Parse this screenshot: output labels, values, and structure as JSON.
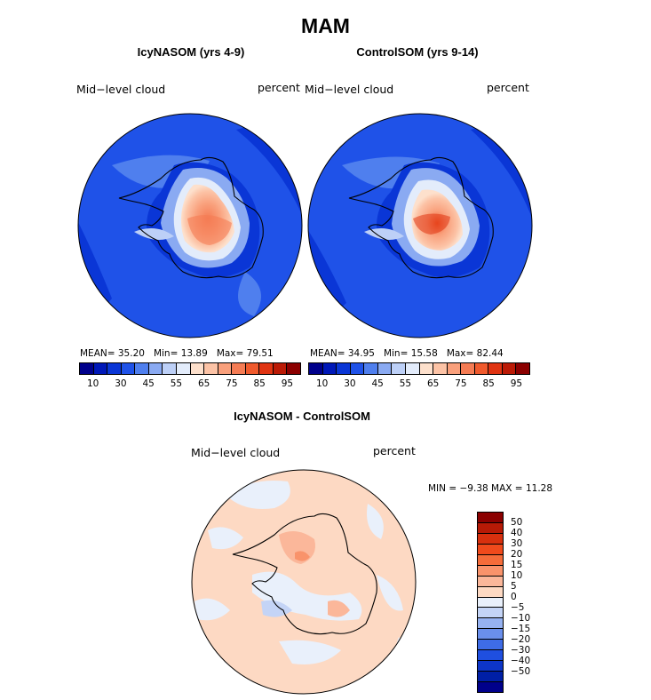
{
  "title": "MAM",
  "panels": [
    {
      "title": "IcyNASOM (yrs 4-9)",
      "left_label": "Mid−level cloud",
      "right_label": "percent",
      "mean": "35.20",
      "min": "13.89",
      "max": "79.51"
    },
    {
      "title": "ControlSOM (yrs 9-14)",
      "left_label": "Mid−level cloud",
      "right_label": "percent",
      "mean": "34.95",
      "min": "15.58",
      "max": "82.44"
    }
  ],
  "stat_labels": {
    "mean": "MEAN=",
    "min": "Min=",
    "max": "Max="
  },
  "abs_scale": {
    "colors": [
      "#00008b",
      "#0018b8",
      "#0a36d6",
      "#1f52e8",
      "#4f7fee",
      "#8aaaf2",
      "#bdd0f7",
      "#e3ecfb",
      "#fde0cc",
      "#fcc3a6",
      "#f9a07c",
      "#f57c54",
      "#f05a2d",
      "#e03412",
      "#bb1a06",
      "#8b0000"
    ],
    "tick_labels": [
      "10",
      "30",
      "45",
      "55",
      "65",
      "75",
      "85",
      "95"
    ]
  },
  "diff": {
    "title": "IcyNASOM - ControlSOM",
    "left_label": "Mid−level cloud",
    "right_label": "percent",
    "min_label": "MIN =",
    "min": "−9.38",
    "max_label": "MAX =",
    "max": "11.28",
    "colors": [
      "#8b0000",
      "#b71a06",
      "#d8300e",
      "#f04a1c",
      "#f56c3a",
      "#f9936b",
      "#fbb79a",
      "#fdd9c3",
      "#e9f0fb",
      "#c4d4f6",
      "#96b2f1",
      "#6a8fec",
      "#3e6ce6",
      "#1f4fe0",
      "#0d35c8",
      "#001fa6",
      "#00008b"
    ],
    "tick_labels": [
      "50",
      "40",
      "30",
      "20",
      "15",
      "10",
      "5",
      "0",
      "−5",
      "−10",
      "−15",
      "−20",
      "−30",
      "−40",
      "−50"
    ]
  }
}
